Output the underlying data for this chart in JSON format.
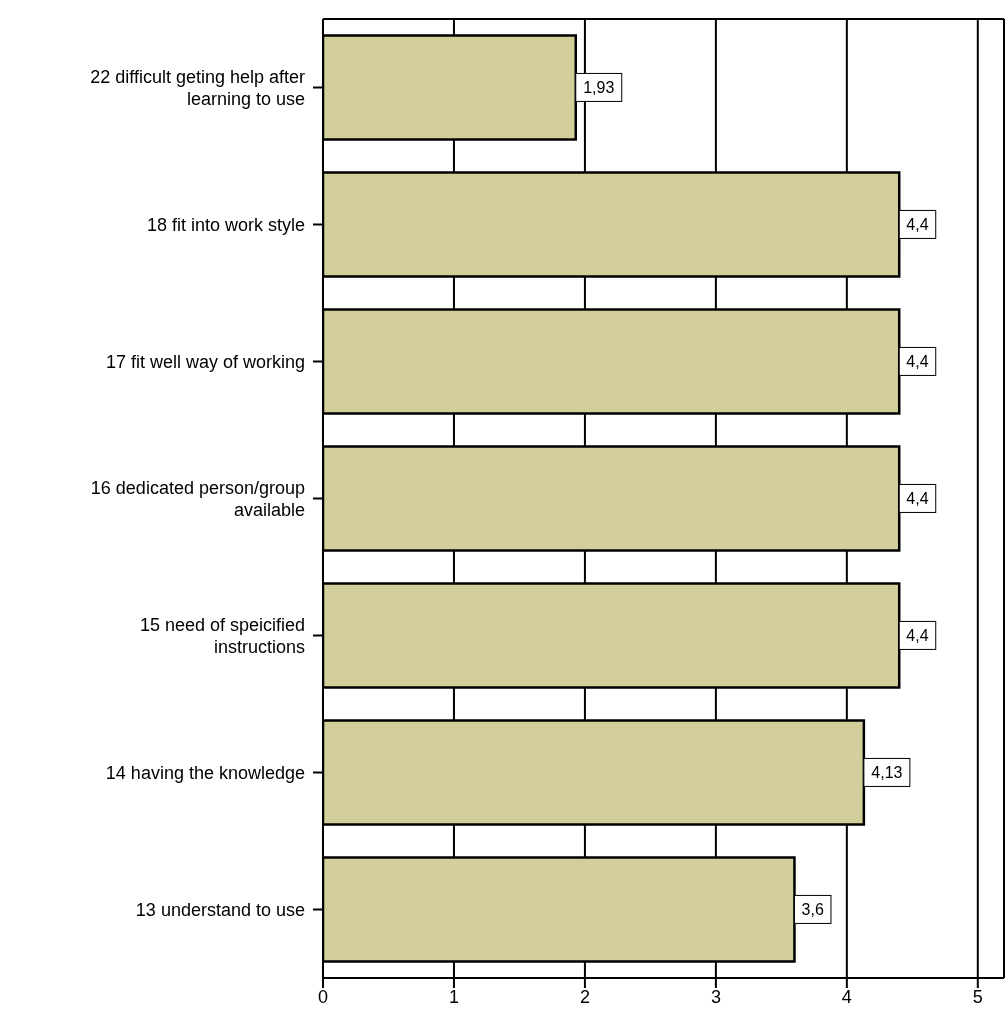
{
  "chart_data": {
    "type": "bar",
    "orientation": "horizontal",
    "categories": [
      "22 difficult geting help after learning to use",
      "18 fit into work style",
      "17 fit well way of working",
      "16 dedicated person/group available",
      "15 need of speicified instructions",
      "14 having the knowledge",
      "13 understand to use"
    ],
    "values": [
      1.93,
      4.4,
      4.4,
      4.4,
      4.4,
      4.13,
      3.6
    ],
    "value_labels": [
      "1,93",
      "4,4",
      "4,4",
      "4,4",
      "4,4",
      "4,13",
      "3,6"
    ],
    "color": "#d3cf9a",
    "xlim": [
      0,
      5.2
    ],
    "xticks": [
      0,
      1,
      2,
      3,
      4,
      5
    ],
    "grid": "x",
    "legend": false
  }
}
